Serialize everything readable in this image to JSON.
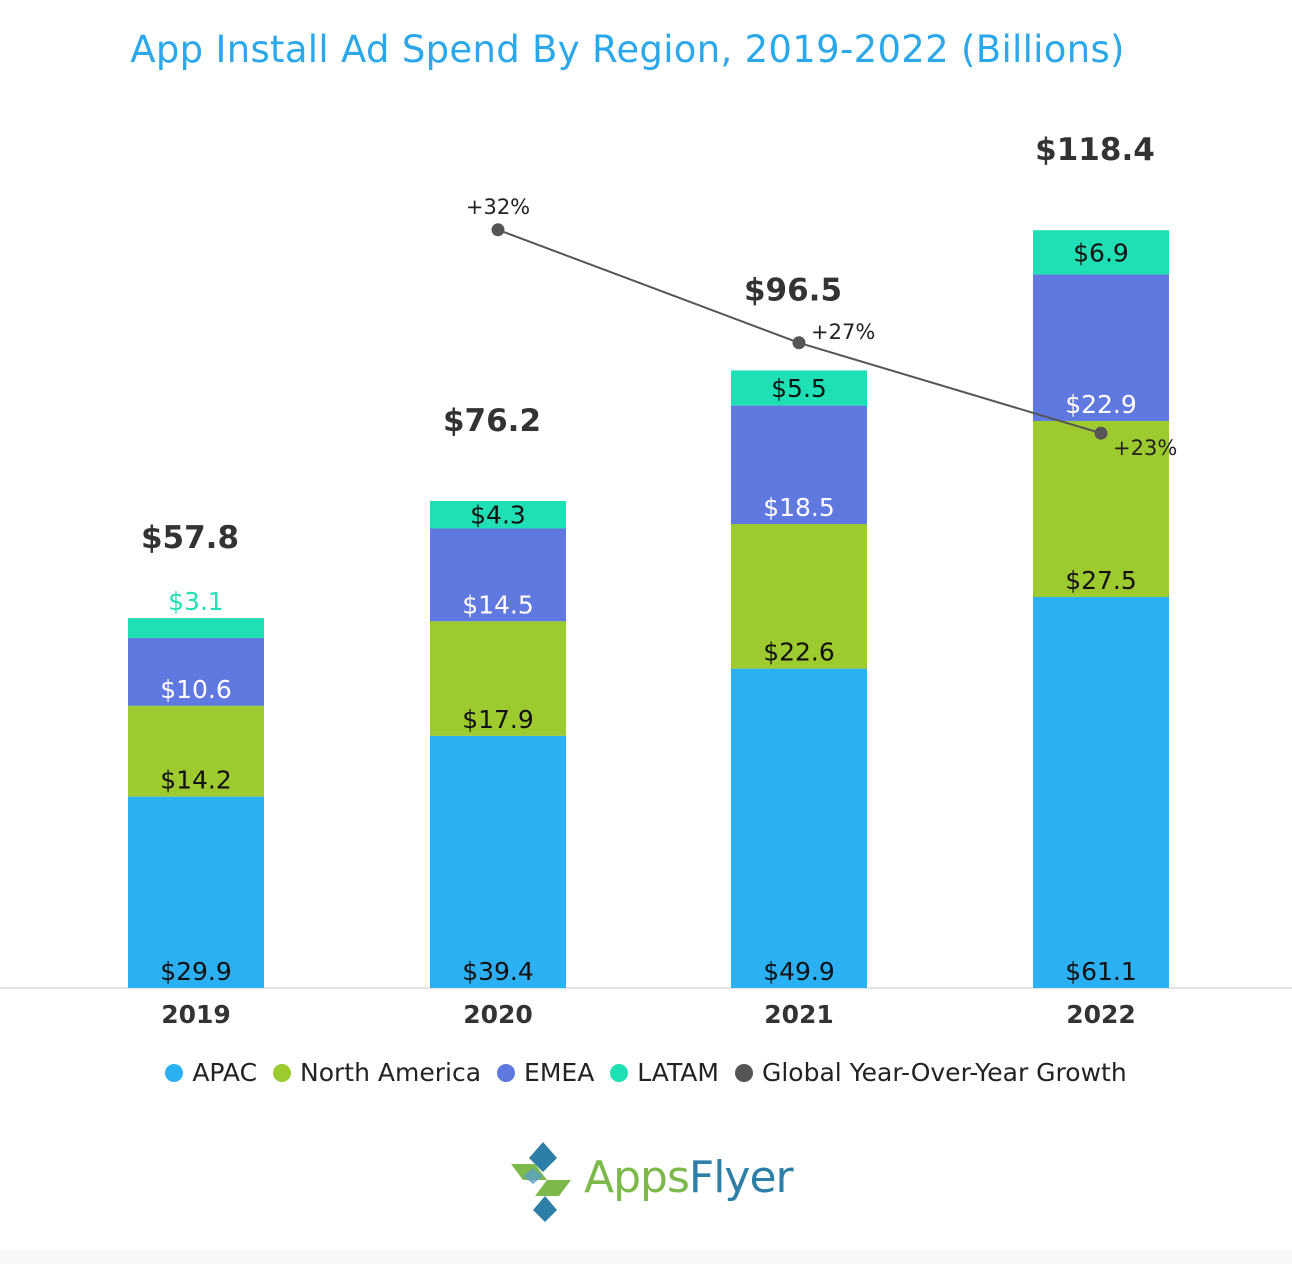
{
  "chart_data": {
    "type": "bar",
    "stacked": true,
    "title": "App Install Ad Spend By Region, 2019-2022 (Billions)",
    "categories": [
      "2019",
      "2020",
      "2021",
      "2022"
    ],
    "series": [
      {
        "name": "APAC",
        "color": "#2bb0f4",
        "values": [
          29.9,
          39.4,
          49.9,
          61.1
        ],
        "labels": [
          "$29.9",
          "$39.4",
          "$49.9",
          "$61.1"
        ]
      },
      {
        "name": "North America",
        "color": "#9dca2e",
        "values": [
          14.2,
          17.9,
          22.6,
          27.5
        ],
        "labels": [
          "$14.2",
          "$17.9",
          "$22.6",
          "$27.5"
        ]
      },
      {
        "name": "EMEA",
        "color": "#5f79e0",
        "values": [
          10.6,
          14.5,
          18.5,
          22.9
        ],
        "labels": [
          "$10.6",
          "$14.5",
          "$18.5",
          "$22.9"
        ]
      },
      {
        "name": "LATAM",
        "color": "#1fe0b4",
        "values": [
          3.1,
          4.3,
          5.5,
          6.9
        ],
        "labels": [
          "$3.1",
          "$4.3",
          "$5.5",
          "$6.9"
        ]
      }
    ],
    "totals": [
      57.8,
      76.2,
      96.5,
      118.4
    ],
    "total_labels": [
      "$57.8",
      "$76.2",
      "$96.5",
      "$118.4"
    ],
    "growth_series": {
      "name": "Global Year-Over-Year Growth",
      "color": "#555555",
      "categories": [
        "2020",
        "2021",
        "2022"
      ],
      "values": [
        32,
        27,
        23
      ],
      "labels": [
        "+32%",
        "+27%",
        "+23%"
      ]
    },
    "legend_position": "bottom",
    "grid": false
  },
  "legend": [
    {
      "label": "APAC",
      "color": "#2bb0f4"
    },
    {
      "label": "North America",
      "color": "#9dca2e"
    },
    {
      "label": "EMEA",
      "color": "#5f79e0"
    },
    {
      "label": "LATAM",
      "color": "#1fe0b4"
    },
    {
      "label": "Global Year-Over-Year Growth",
      "color": "#555555"
    }
  ],
  "logo": {
    "text_apps": "Apps",
    "text_flyer": "Flyer",
    "icon": "appsflyer-logo-icon",
    "colors": {
      "green": "#7cb94a",
      "blue": "#2d7fa8"
    }
  }
}
